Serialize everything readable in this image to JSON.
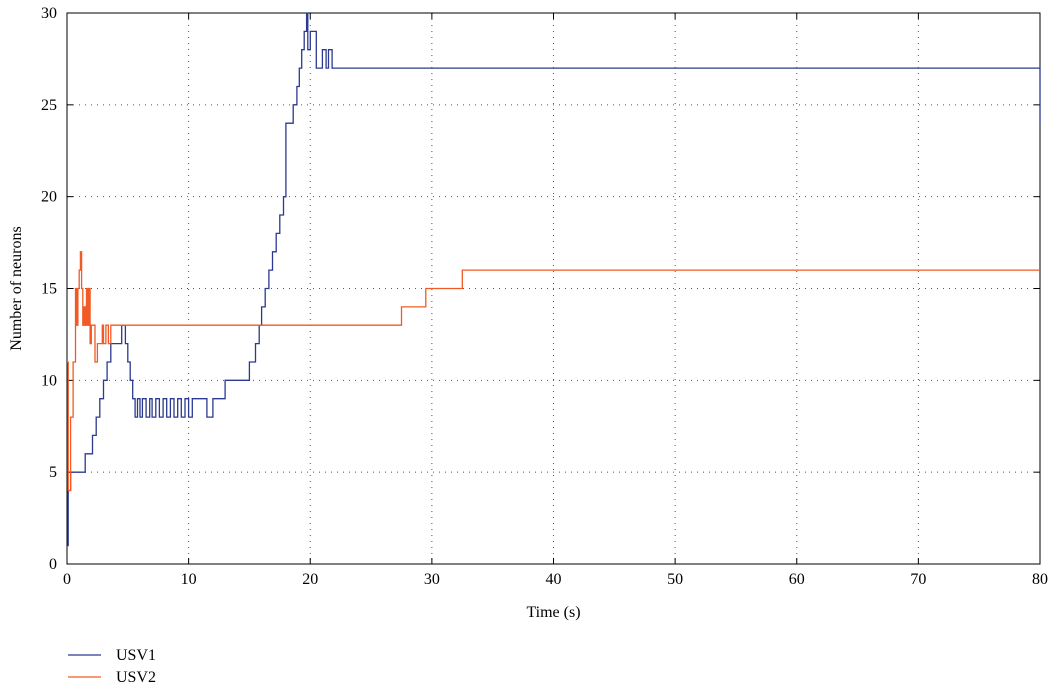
{
  "chart_data": {
    "type": "line",
    "title": "",
    "xlabel": "Time (s)",
    "ylabel": "Number of neurons",
    "xlim": [
      0,
      80
    ],
    "ylim": [
      0,
      30
    ],
    "xticks": [
      0,
      10,
      20,
      30,
      40,
      50,
      60,
      70,
      80
    ],
    "yticks": [
      0,
      5,
      10,
      15,
      20,
      25,
      30
    ],
    "grid": true,
    "legend_position": "bottom-left, below plot",
    "series": [
      {
        "name": "USV1",
        "color": "#2b3990",
        "x": [
          0,
          0.1,
          0.3,
          1.2,
          1.5,
          1.8,
          2.1,
          2.4,
          2.7,
          3.0,
          3.3,
          3.6,
          4.0,
          4.5,
          4.8,
          5.0,
          5.2,
          5.4,
          5.6,
          5.8,
          6.0,
          6.2,
          6.5,
          6.8,
          7.0,
          7.3,
          7.6,
          7.9,
          8.2,
          8.5,
          8.8,
          9.1,
          9.4,
          9.7,
          10.0,
          10.3,
          11.0,
          11.5,
          12.0,
          12.5,
          13.0,
          13.5,
          14.0,
          15.0,
          15.5,
          15.8,
          16.0,
          16.3,
          16.6,
          16.9,
          17.2,
          17.5,
          17.8,
          18.0,
          18.3,
          18.6,
          18.9,
          19.1,
          19.3,
          19.5,
          19.7,
          19.8,
          20.0,
          20.5,
          21.0,
          21.3,
          21.5,
          21.8,
          80
        ],
        "y": [
          1,
          4,
          5,
          5,
          6,
          6,
          7,
          8,
          9,
          10,
          11,
          12,
          12,
          13,
          12,
          11,
          10,
          9,
          8,
          9,
          8,
          9,
          8,
          9,
          8,
          9,
          8,
          9,
          8,
          9,
          8,
          9,
          8,
          9,
          8,
          9,
          9,
          8,
          9,
          9,
          10,
          10,
          10,
          11,
          12,
          13,
          14,
          15,
          16,
          17,
          18,
          19,
          20,
          24,
          24,
          25,
          26,
          27,
          28,
          29,
          30,
          28,
          29,
          27,
          28,
          27,
          28,
          27,
          24
        ]
      },
      {
        "name": "USV2",
        "color": "#f15a24",
        "x": [
          0,
          0.1,
          0.3,
          0.5,
          0.7,
          0.8,
          0.9,
          1.0,
          1.1,
          1.2,
          1.3,
          1.4,
          1.5,
          1.6,
          1.7,
          1.8,
          1.9,
          2.0,
          2.1,
          2.3,
          2.5,
          2.7,
          2.9,
          3.0,
          3.2,
          3.4,
          3.6,
          3.8,
          4.0,
          27.5,
          29.5,
          32.5,
          80
        ],
        "y": [
          11,
          4,
          8,
          11,
          15,
          13,
          15,
          16,
          17,
          15,
          13,
          14,
          13,
          15,
          13,
          15,
          12,
          13,
          13,
          11,
          12,
          12,
          13,
          12,
          13,
          12,
          13,
          13,
          13,
          14,
          15,
          16,
          16
        ]
      }
    ]
  }
}
